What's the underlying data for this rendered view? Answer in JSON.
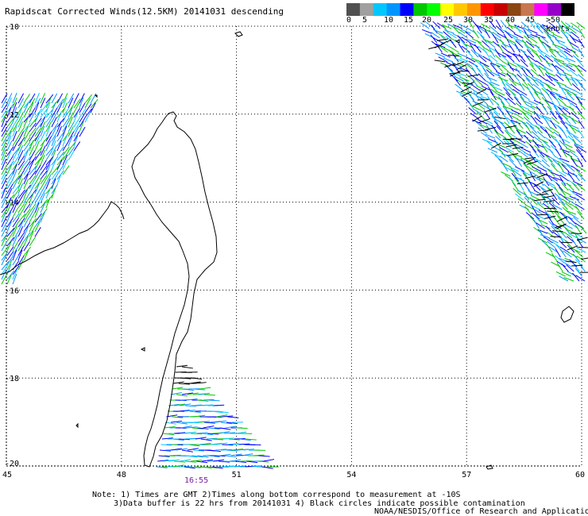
{
  "title": "Rapidscat Corrected Winds(12.5KM) 20141031 descending",
  "colorbar": {
    "segments": [
      "#505050",
      "#a0a0a0",
      "#00c8ff",
      "#0096ff",
      "#0000ff",
      "#00c800",
      "#00ff00",
      "#ffff00",
      "#ffc800",
      "#ff9600",
      "#ff0000",
      "#c80000",
      "#8b4513",
      "#c87850",
      "#ff00ff",
      "#9600c8",
      "#000000"
    ],
    "labels": [
      "0",
      "5",
      "10",
      "15",
      "20",
      "25",
      "30",
      "35",
      "40",
      "45",
      ">50 knots"
    ]
  },
  "axes": {
    "lat_ticks": [
      "-10",
      "-12",
      "-14",
      "-16",
      "-18",
      "-20"
    ],
    "lon_ticks": [
      "45",
      "48",
      "51",
      "54",
      "57",
      "60"
    ]
  },
  "time_label": "16:55",
  "notes": [
    "Note: 1) Times are GMT 2)Times along bottom correspond to measurement at -10S",
    "3)Data buffer is 22 hrs from 20141031 4) Black circles indicate possible contamination",
    "NOAA/NESDIS/Office of Research and Applications"
  ]
}
